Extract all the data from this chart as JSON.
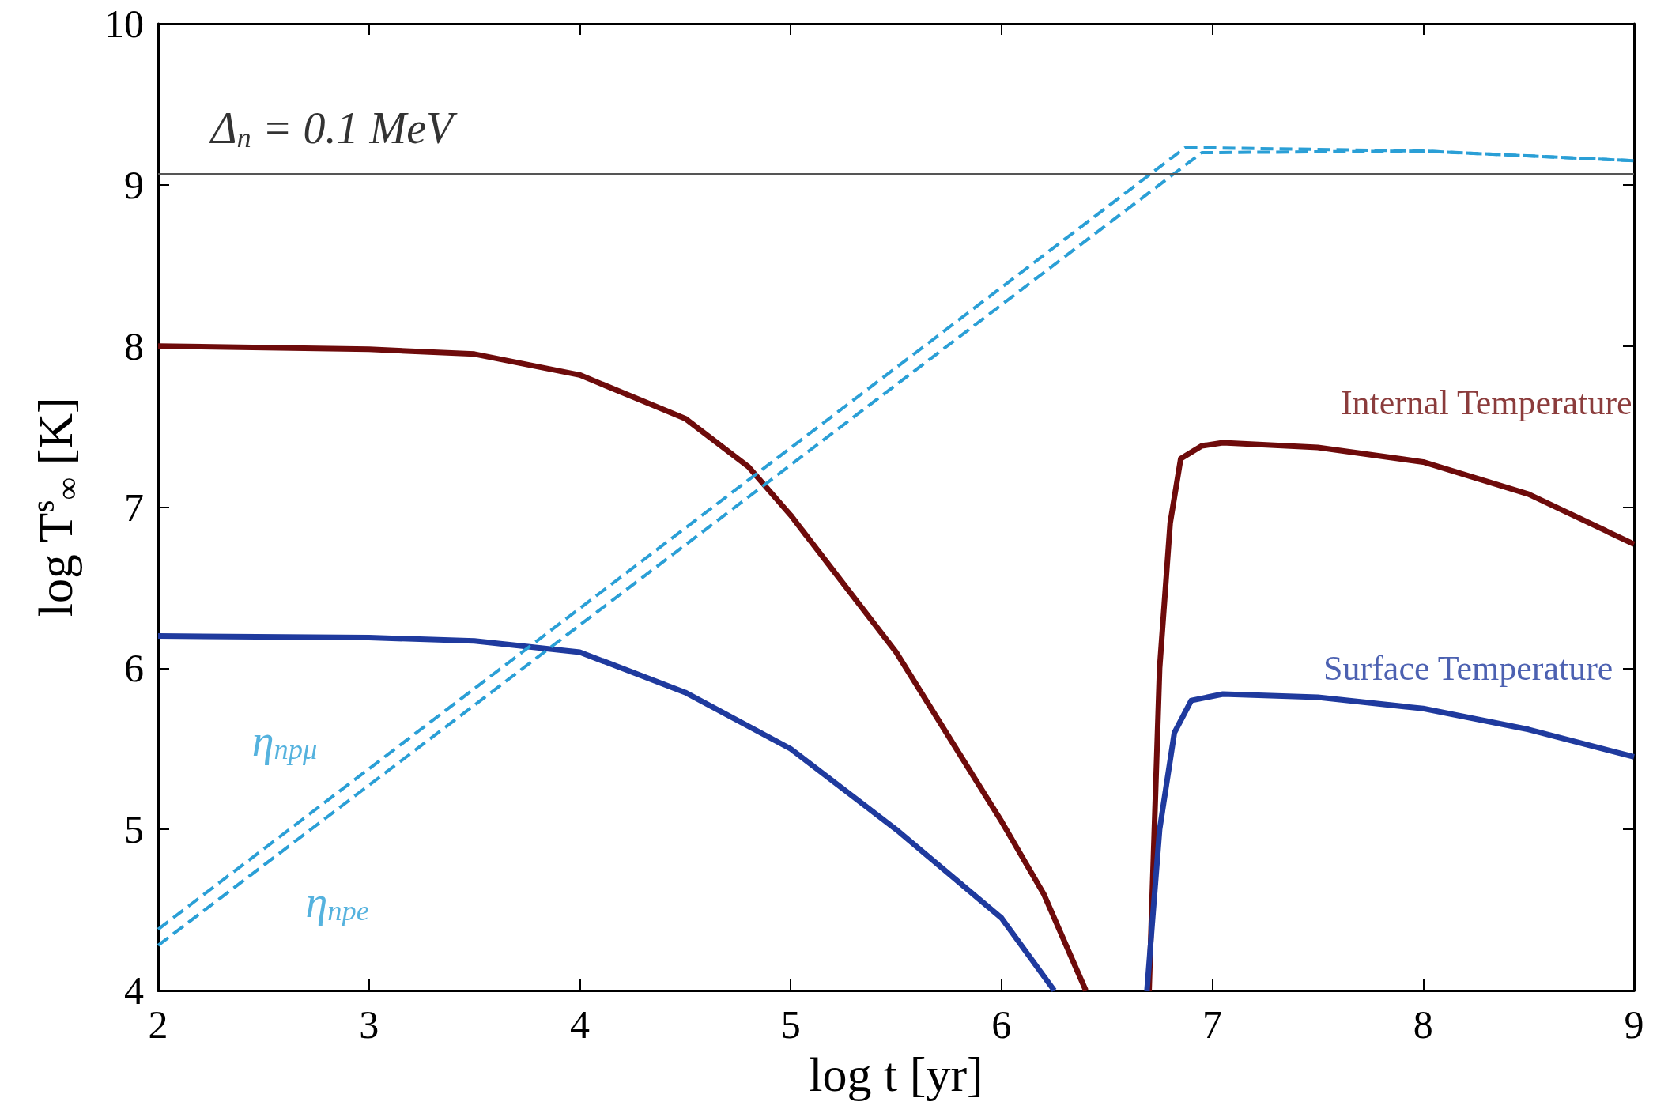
{
  "chart_data": {
    "type": "line",
    "xlabel": "log t [yr]",
    "ylabel": "log T$^{s}$$_{∞}$ [K]",
    "xlim": [
      2,
      9
    ],
    "xticks": [
      2,
      3,
      4,
      5,
      6,
      7,
      8,
      9
    ],
    "ylim": [
      4,
      10
    ],
    "yticks": [
      4,
      5,
      6,
      7,
      8,
      9,
      10
    ],
    "grid": false,
    "marker": "none",
    "series": [
      {
        "color": "#6e0b0b",
        "line_style": "solid",
        "x": [
          2,
          3,
          3.5,
          4,
          4.5,
          4.8,
          5,
          5.5,
          6,
          6.2,
          6.4,
          6.55,
          6.7,
          6.75,
          6.8,
          6.85,
          6.95,
          7.05,
          7.5,
          8,
          8.5,
          9
        ],
        "values": [
          8.0,
          7.98,
          7.95,
          7.82,
          7.55,
          7.25,
          6.95,
          6.1,
          5.05,
          4.6,
          4.0,
          null,
          4.0,
          6.0,
          6.9,
          7.3,
          7.38,
          7.4,
          7.37,
          7.28,
          7.08,
          6.77
        ]
      },
      {
        "color": "#1f3a9e",
        "line_style": "solid",
        "x": [
          2,
          3,
          3.5,
          4,
          4.5,
          5,
          5.5,
          6,
          6.25,
          6.45,
          6.69,
          6.75,
          6.82,
          6.9,
          7.05,
          7.5,
          8,
          8.5,
          9
        ],
        "values": [
          6.2,
          6.19,
          6.17,
          6.1,
          5.85,
          5.5,
          5.0,
          4.45,
          4.0,
          null,
          4.0,
          5.0,
          5.6,
          5.8,
          5.84,
          5.82,
          5.75,
          5.62,
          5.45
        ]
      },
      {
        "color": "#2a9fd6",
        "line_style": "dashed",
        "x": [
          2,
          6.87,
          7,
          8,
          9
        ],
        "values": [
          4.38,
          9.23,
          9.23,
          9.21,
          9.15
        ]
      },
      {
        "color": "#2a9fd6",
        "line_style": "dashed",
        "x": [
          2,
          6.95,
          8,
          9
        ],
        "values": [
          4.28,
          9.2,
          9.21,
          9.15
        ]
      }
    ],
    "ref_lines": [
      {
        "axis": "y",
        "value": 9.07,
        "color": "#555555"
      }
    ],
    "annotations": [
      "Internal Temperature",
      "Surface Temperature",
      "η$_{npμ}$",
      "η$_{npe}$",
      "Δ$_{n}$ = 0.1 MeV"
    ]
  }
}
